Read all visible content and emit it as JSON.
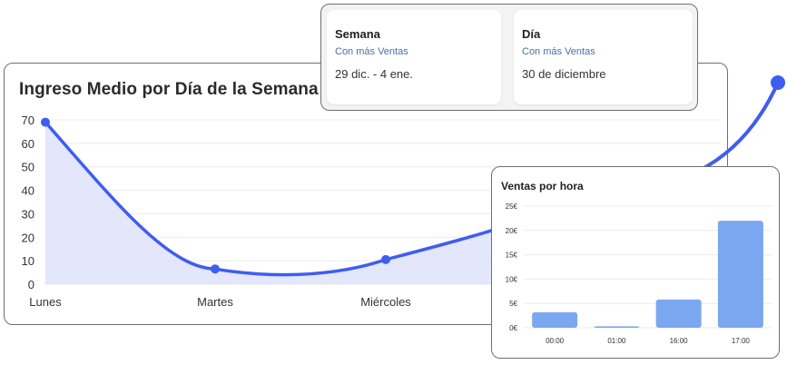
{
  "main_chart": {
    "title": "Ingreso Medio por Día de la Semana",
    "colors": {
      "line": "#3f5df0",
      "fill": "#dfe2fb",
      "grid": "#ececec"
    }
  },
  "stats": {
    "week": {
      "title": "Semana",
      "subtitle": "Con más Ventas",
      "value": "29 dic. - 4 ene."
    },
    "day": {
      "title": "Día",
      "subtitle": "Con más Ventas",
      "value": "30 de diciembre"
    }
  },
  "bar_chart": {
    "title": "Ventas por hora",
    "colors": {
      "bar": "#7ba7f0",
      "grid": "#ececec"
    }
  },
  "chart_data": [
    {
      "type": "area",
      "title": "Ingreso Medio por Día de la Semana",
      "categories": [
        "Lunes",
        "Martes",
        "Miércoles"
      ],
      "values": [
        69,
        6.5,
        10.5
      ],
      "ylim": [
        0,
        70
      ],
      "yticks": [
        0,
        10,
        20,
        30,
        40,
        50,
        60,
        70
      ],
      "grid": true
    },
    {
      "type": "bar",
      "title": "Ventas por hora",
      "categories": [
        "00:00",
        "01:00",
        "16:00",
        "17:00"
      ],
      "values": [
        3.2,
        0.3,
        5.8,
        22
      ],
      "ylim": [
        0,
        25
      ],
      "yticks": [
        "0€",
        "5€",
        "10€",
        "15€",
        "20€",
        "25€"
      ],
      "grid": true
    }
  ]
}
